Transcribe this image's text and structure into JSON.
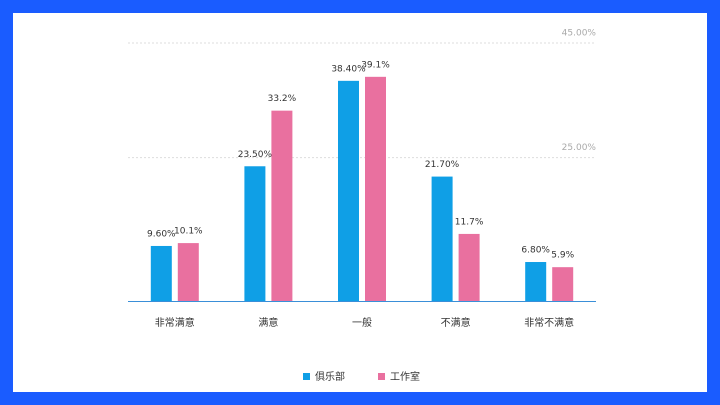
{
  "chart_data": {
    "type": "bar",
    "categories": [
      "非常满意",
      "满意",
      "一般",
      "不满意",
      "非常不满意"
    ],
    "series": [
      {
        "name": "俱乐部",
        "color": "#0f9fe6",
        "values": [
          9.6,
          23.5,
          38.4,
          21.7,
          6.8
        ],
        "value_labels": [
          "9.60%",
          "23.50%",
          "38.40%",
          "21.70%",
          "6.80%"
        ]
      },
      {
        "name": "工作室",
        "color": "#e9709f",
        "values": [
          10.1,
          33.2,
          39.1,
          11.7,
          5.9
        ],
        "value_labels": [
          "10.1%",
          "33.2%",
          "39.1%",
          "11.7%",
          "5.9%"
        ]
      }
    ],
    "ylim": [
      0,
      45
    ],
    "yticks": [
      {
        "value": 25,
        "label": "25.00%"
      },
      {
        "value": 45,
        "label": "45.00%"
      }
    ],
    "grid": true
  }
}
